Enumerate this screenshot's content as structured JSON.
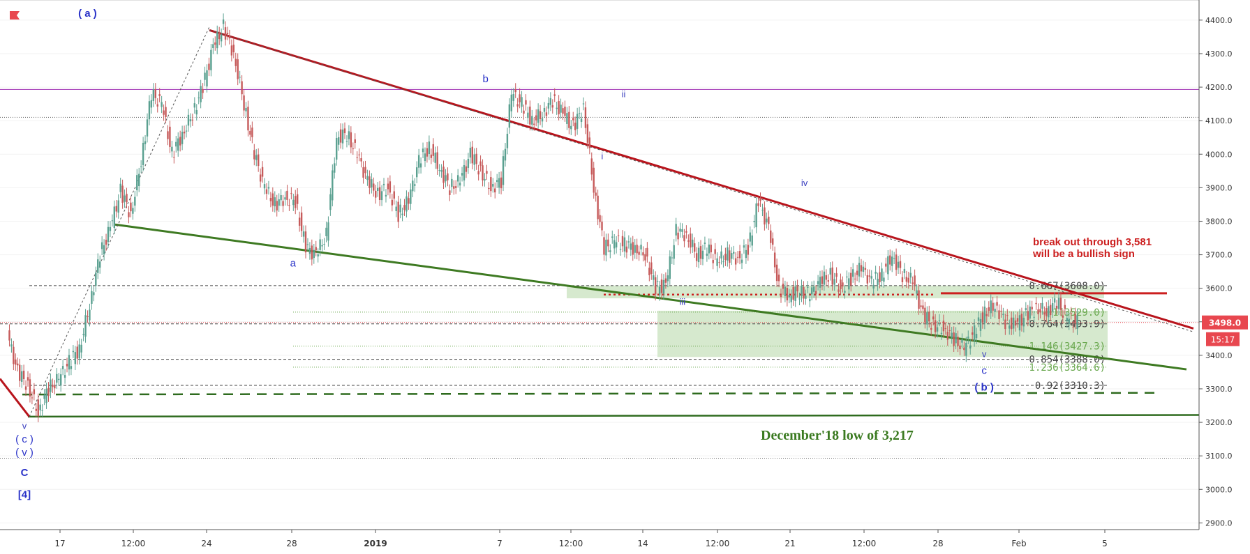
{
  "chart_data": {
    "type": "candlestick",
    "y_axis": {
      "ylim": [
        2880,
        4460
      ],
      "ticks": [
        "4400.0",
        "4300.0",
        "4200.0",
        "4100.0",
        "4000.0",
        "3900.0",
        "3800.0",
        "3700.0",
        "3600.0",
        "3500.0",
        "3400.0",
        "3300.0",
        "3200.0",
        "3100.0",
        "3000.0",
        "2900.0"
      ]
    },
    "x_axis": {
      "ticks": [
        "17",
        "12:00",
        "24",
        "28",
        "2019",
        "7",
        "12:00",
        "14",
        "12:00",
        "21",
        "12:00",
        "28",
        "Feb",
        "5"
      ]
    },
    "price_label": {
      "value": "3498.0",
      "timer": "15:17",
      "color": "#e8474f"
    },
    "price_path": [
      [
        0,
        3460
      ],
      [
        1,
        3350
      ],
      [
        2,
        3310
      ],
      [
        3,
        3230
      ],
      [
        4,
        3300
      ],
      [
        5,
        3330
      ],
      [
        6,
        3380
      ],
      [
        7,
        3420
      ],
      [
        8,
        3550
      ],
      [
        9,
        3700
      ],
      [
        10,
        3780
      ],
      [
        11,
        3890
      ],
      [
        12,
        3820
      ],
      [
        13,
        3980
      ],
      [
        14,
        4180
      ],
      [
        15,
        4150
      ],
      [
        16,
        4000
      ],
      [
        17,
        4060
      ],
      [
        18,
        4120
      ],
      [
        19,
        4200
      ],
      [
        20,
        4320
      ],
      [
        21,
        4380
      ],
      [
        22,
        4300
      ],
      [
        23,
        4150
      ],
      [
        24,
        4000
      ],
      [
        25,
        3900
      ],
      [
        26,
        3850
      ],
      [
        27,
        3870
      ],
      [
        28,
        3860
      ],
      [
        29,
        3720
      ],
      [
        30,
        3700
      ],
      [
        31,
        3760
      ],
      [
        32,
        4050
      ],
      [
        33,
        4060
      ],
      [
        34,
        4000
      ],
      [
        35,
        3920
      ],
      [
        36,
        3880
      ],
      [
        37,
        3900
      ],
      [
        38,
        3820
      ],
      [
        39,
        3860
      ],
      [
        40,
        3980
      ],
      [
        41,
        4020
      ],
      [
        42,
        3960
      ],
      [
        43,
        3900
      ],
      [
        44,
        3920
      ],
      [
        45,
        4000
      ],
      [
        46,
        3950
      ],
      [
        47,
        3900
      ],
      [
        48,
        3920
      ],
      [
        49,
        4180
      ],
      [
        50,
        4150
      ],
      [
        51,
        4100
      ],
      [
        52,
        4120
      ],
      [
        53,
        4160
      ],
      [
        54,
        4120
      ],
      [
        55,
        4080
      ],
      [
        56,
        4140
      ],
      [
        57,
        3900
      ],
      [
        58,
        3720
      ],
      [
        59,
        3740
      ],
      [
        60,
        3730
      ],
      [
        61,
        3720
      ],
      [
        62,
        3700
      ],
      [
        63,
        3600
      ],
      [
        64,
        3610
      ],
      [
        65,
        3770
      ],
      [
        66,
        3760
      ],
      [
        67,
        3700
      ],
      [
        68,
        3720
      ],
      [
        69,
        3680
      ],
      [
        70,
        3700
      ],
      [
        71,
        3690
      ],
      [
        72,
        3720
      ],
      [
        73,
        3860
      ],
      [
        74,
        3780
      ],
      [
        75,
        3600
      ],
      [
        76,
        3580
      ],
      [
        77,
        3590
      ],
      [
        78,
        3580
      ],
      [
        79,
        3620
      ],
      [
        80,
        3640
      ],
      [
        81,
        3600
      ],
      [
        82,
        3630
      ],
      [
        83,
        3660
      ],
      [
        84,
        3620
      ],
      [
        85,
        3640
      ],
      [
        86,
        3700
      ],
      [
        87,
        3640
      ],
      [
        88,
        3620
      ],
      [
        89,
        3520
      ],
      [
        90,
        3490
      ],
      [
        91,
        3480
      ],
      [
        92,
        3450
      ],
      [
        93,
        3420
      ],
      [
        94,
        3470
      ],
      [
        95,
        3530
      ],
      [
        96,
        3550
      ],
      [
        97,
        3500
      ],
      [
        98,
        3490
      ],
      [
        99,
        3520
      ],
      [
        100,
        3540
      ],
      [
        101,
        3530
      ],
      [
        102,
        3560
      ],
      [
        103,
        3510
      ],
      [
        104,
        3498
      ]
    ],
    "wave_labels": [
      {
        "text": "( a )",
        "x": 7.4,
        "y": 4410
      },
      {
        "text": "b",
        "x": 44.6,
        "y": 4215
      },
      {
        "text": "a",
        "x": 26.6,
        "y": 3665
      },
      {
        "text": "ii",
        "x": 57.5,
        "y": 4170
      },
      {
        "text": "i",
        "x": 55.5,
        "y": 3985
      },
      {
        "text": "iii",
        "x": 63.0,
        "y": 3550
      },
      {
        "text": "iv",
        "x": 74.4,
        "y": 3905
      },
      {
        "text": "v",
        "x": 91.2,
        "y": 3395
      },
      {
        "text": "c",
        "x": 91.2,
        "y": 3345
      },
      {
        "text": "( b )",
        "x": 91.2,
        "y": 3295
      },
      {
        "text": "v",
        "x": 1.5,
        "y": 3180
      },
      {
        "text": "( c )",
        "x": 1.5,
        "y": 3140
      },
      {
        "text": "( v )",
        "x": 1.5,
        "y": 3100
      },
      {
        "text": "C",
        "x": 1.5,
        "y": 3040
      },
      {
        "text": "[4]",
        "x": 1.5,
        "y": 2975
      }
    ],
    "fib_levels": [
      {
        "label": "0.667(3608.0)",
        "value": 3608.0,
        "color": "#444"
      },
      {
        "label": "1(3529.0)",
        "value": 3529.0,
        "color": "#6aa84f"
      },
      {
        "label": "0.764(3493.9)",
        "value": 3493.9,
        "color": "#444"
      },
      {
        "label": "1.146(3427.3)",
        "value": 3427.3,
        "color": "#6aa84f"
      },
      {
        "label": "0.854(3388.0)",
        "value": 3388.0,
        "color": "#444"
      },
      {
        "label": "1.236(3364.6)",
        "value": 3364.6,
        "color": "#6aa84f"
      },
      {
        "label": "0.92(3310.3)",
        "value": 3310.3,
        "color": "#444"
      }
    ],
    "horizontal_lines": [
      {
        "value": 4193,
        "color": "#9c27b0"
      },
      {
        "value": 4110,
        "color": "#666"
      },
      {
        "value": 3581,
        "color": "#cc1f1f"
      },
      {
        "value": 3283,
        "color": "#2e6b1e"
      },
      {
        "value": 3217,
        "color": "#2e6b1e"
      },
      {
        "value": 3093,
        "color": "#666"
      }
    ],
    "annotations": [
      {
        "text": "break out through 3,581",
        "color": "#cc1f1f"
      },
      {
        "text": "will be a bullish sign",
        "color": "#cc1f1f"
      },
      {
        "text": "December'18 low of 3,217",
        "color": "#3a7a20"
      }
    ],
    "colors": {
      "up": "#5aa090",
      "down": "#c65a5a",
      "trend_down": "#b8141c",
      "trend_up": "#3e7a22",
      "zone": "#cfe5c6",
      "wave": "#2a33c8"
    }
  }
}
